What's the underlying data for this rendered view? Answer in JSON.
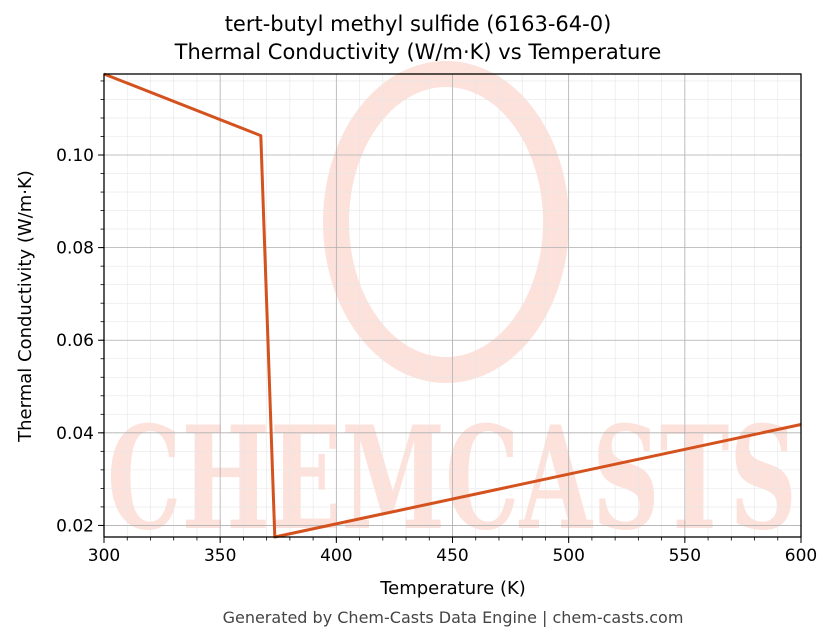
{
  "title_line1": "tert-butyl methyl sulfide (6163-64-0)",
  "title_line2": "Thermal Conductivity (W/m·K) vs Temperature",
  "footer": "Generated by Chem-Casts Data Engine | chem-casts.com",
  "watermark": "CHEMCASTS",
  "colors": {
    "line": "#d4521e",
    "watermark": "#fde2dc",
    "grid": "#b0b0b0"
  },
  "chart_data": {
    "type": "line",
    "title": "tert-butyl methyl sulfide (6163-64-0)\nThermal Conductivity (W/m·K) vs Temperature",
    "xlabel": "Temperature (K)",
    "ylabel": "Thermal Conductivity (W/m·K)",
    "xlim": [
      300,
      600
    ],
    "ylim": [
      0.0175,
      0.1175
    ],
    "xticks": [
      300,
      350,
      400,
      450,
      500,
      550,
      600
    ],
    "yticks": [
      0.02,
      0.04,
      0.06,
      0.08,
      0.1
    ],
    "ytick_labels": [
      "0.02",
      "0.04",
      "0.06",
      "0.08",
      "0.10"
    ],
    "grid": true,
    "series": [
      {
        "x": [
          300,
          367.5,
          373.5,
          600
        ],
        "y": [
          0.1175,
          0.1042,
          0.0175,
          0.0418
        ]
      }
    ]
  }
}
